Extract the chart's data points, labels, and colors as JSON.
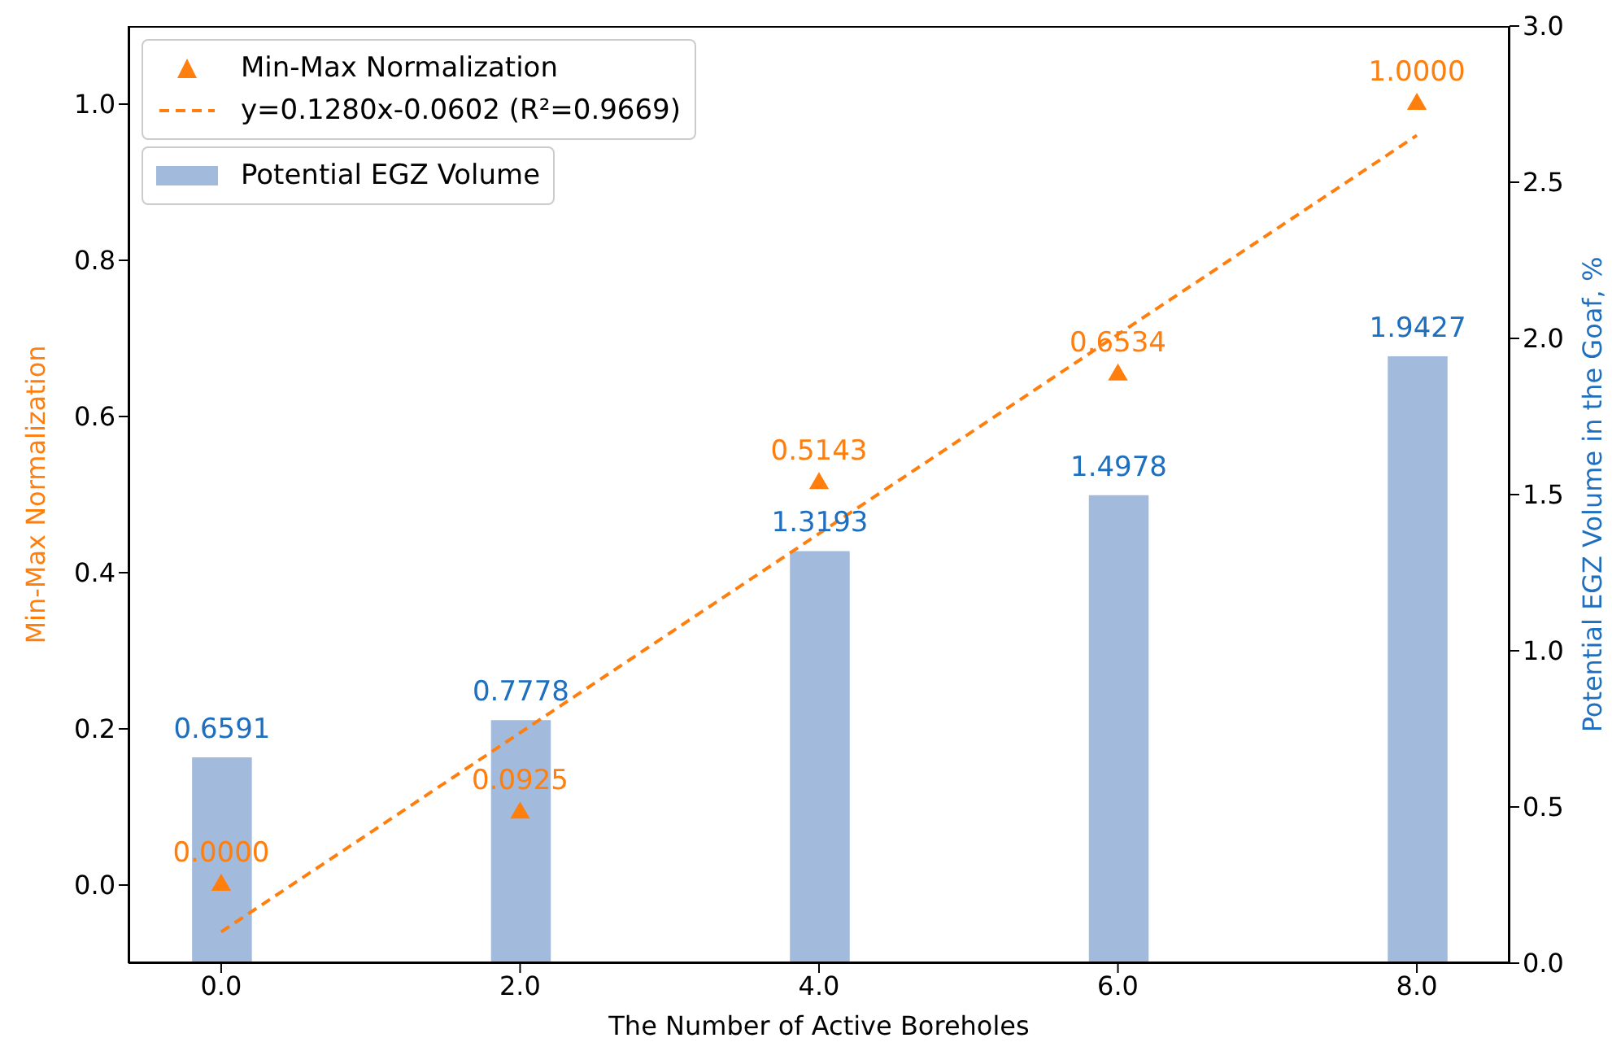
{
  "chart_data": {
    "type": "bar",
    "xlabel": "The Number of Active Boreholes",
    "ylabel": "Min-Max Normalization",
    "y2label": "Potential EGZ Volume in the Goaf, %",
    "x": [
      0,
      2,
      4,
      6,
      8
    ],
    "xlim": [
      -0.62,
      8.62
    ],
    "xticks": [
      {
        "value": 0,
        "label": "0.0"
      },
      {
        "value": 2,
        "label": "2.0"
      },
      {
        "value": 4,
        "label": "4.0"
      },
      {
        "value": 6,
        "label": "6.0"
      },
      {
        "value": 8,
        "label": "8.0"
      }
    ],
    "ylim": [
      -0.1,
      1.1
    ],
    "yticks": [
      {
        "value": 0,
        "label": "0.0"
      },
      {
        "value": 0.2,
        "label": "0.2"
      },
      {
        "value": 0.4,
        "label": "0.4"
      },
      {
        "value": 0.6,
        "label": "0.6"
      },
      {
        "value": 0.8,
        "label": "0.8"
      },
      {
        "value": 1,
        "label": "1.0"
      }
    ],
    "y2lim": [
      0,
      3
    ],
    "y2ticks": [
      {
        "value": 0,
        "label": "0.0"
      },
      {
        "value": 0.5,
        "label": "0.5"
      },
      {
        "value": 1,
        "label": "1.0"
      },
      {
        "value": 1.5,
        "label": "1.5"
      },
      {
        "value": 2,
        "label": "2.0"
      },
      {
        "value": 2.5,
        "label": "2.5"
      },
      {
        "value": 3,
        "label": "3.0"
      }
    ],
    "legend": "top left",
    "series": [
      {
        "name": "Potential EGZ Volume",
        "axis": "y2",
        "color": "#a2badc",
        "values": [
          0.6591,
          0.7778,
          1.3193,
          1.4978,
          1.9427
        ],
        "value_labels": [
          "0.6591",
          "0.7778",
          "1.3193",
          "1.4978",
          "1.9427"
        ]
      },
      {
        "name": "Min-Max Normalization",
        "type": "scatter",
        "color": "#ff7f0e",
        "marker": "triangle",
        "values": [
          0,
          0.0925,
          0.5143,
          0.6534,
          1
        ],
        "value_labels": [
          "0.0000",
          "0.0925",
          "0.5143",
          "0.6534",
          "1.0000"
        ]
      },
      {
        "name": "y=0.1280x-0.0602 (R²=0.9669)",
        "type": "line",
        "color": "#ff7f0e",
        "line_style": "dashed",
        "marker": "none",
        "x": [
          0,
          8
        ],
        "values": [
          -0.06,
          0.96
        ]
      }
    ]
  }
}
